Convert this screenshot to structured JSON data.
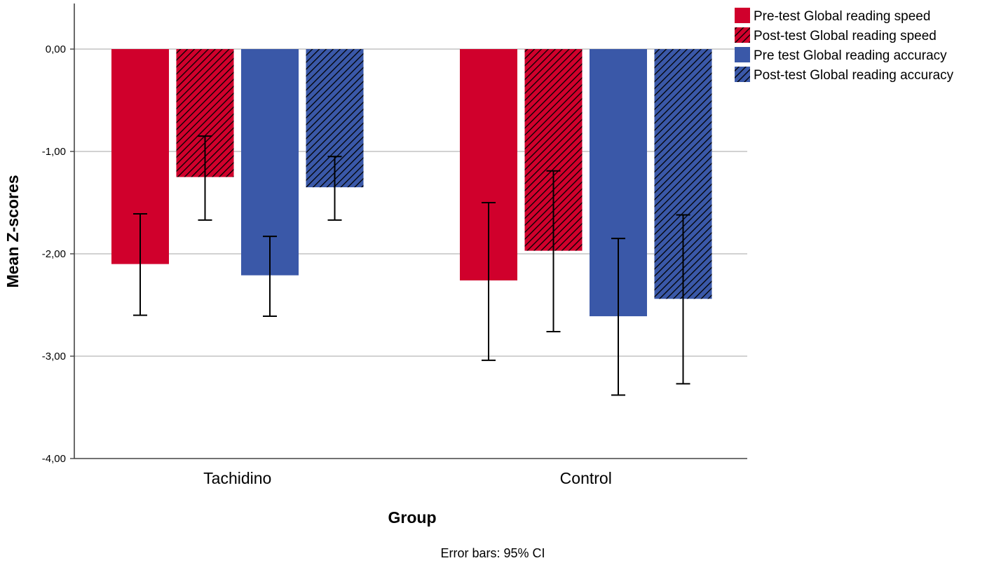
{
  "chart_data": {
    "type": "bar",
    "xlabel": "Group",
    "ylabel": "Mean Z-scores",
    "footnote": "Error bars: 95% CI",
    "ylim": [
      -4,
      0.45
    ],
    "yticks": [
      0,
      -1,
      -2,
      -3,
      -4
    ],
    "ytick_labels": [
      "0,00",
      "-1,00",
      "-2,00",
      "-3,00",
      "-4,00"
    ],
    "grid": true,
    "legend_position": "top-right",
    "categories": [
      "Tachidino",
      "Control"
    ],
    "series": [
      {
        "name": "Pre-test Global reading speed",
        "color": "#d0002c",
        "hatched": false,
        "values": [
          -2.1,
          -2.26
        ],
        "ci_low": [
          -2.6,
          -3.04
        ],
        "ci_high": [
          -1.61,
          -1.5
        ]
      },
      {
        "name": "Post-test Global reading speed",
        "color": "#d0002c",
        "hatched": true,
        "values": [
          -1.25,
          -1.97
        ],
        "ci_low": [
          -1.67,
          -2.76
        ],
        "ci_high": [
          -0.85,
          -1.19
        ]
      },
      {
        "name": "Pre test Global reading accuracy",
        "color": "#3a58a8",
        "hatched": false,
        "values": [
          -2.21,
          -2.61
        ],
        "ci_low": [
          -2.61,
          -3.38
        ],
        "ci_high": [
          -1.83,
          -1.85
        ]
      },
      {
        "name": "Post-test Global reading accuracy",
        "color": "#3a58a8",
        "hatched": true,
        "values": [
          -1.35,
          -2.44
        ],
        "ci_low": [
          -1.67,
          -3.27
        ],
        "ci_high": [
          -1.05,
          -1.62
        ]
      }
    ]
  }
}
